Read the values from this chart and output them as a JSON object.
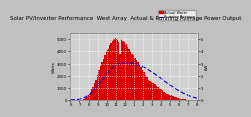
{
  "title": "Solar PV/Inverter Performance  West Array  Actual & Running Average Power Output",
  "bar_color": "#dd0000",
  "avg_color": "#0000cc",
  "bg_color": "#c0c0c0",
  "plot_bg": "#d0d0d0",
  "grid_color": "#ffffff",
  "ylabel_left": "Watts",
  "ylabel_right": "kW",
  "legend_entries": [
    "Actual Watts",
    "Running Average"
  ],
  "legend_colors": [
    "#dd0000",
    "#0000cc"
  ],
  "x_labels": [
    "6",
    "7",
    "8",
    "9",
    "10",
    "11",
    "12",
    "1",
    "2",
    "3",
    "4",
    "5",
    "6",
    "7",
    "8"
  ],
  "ylim": [
    0,
    5500
  ],
  "yticks_left": [
    0,
    1000,
    2000,
    3000,
    4000,
    5000
  ],
  "ytick_labels_left": [
    "0",
    "1000",
    "2000",
    "3000",
    "4000",
    "5000"
  ],
  "yticks_right": [
    0,
    1000,
    2000,
    3000,
    4000,
    5000
  ],
  "ytick_labels_right": [
    "0",
    "1",
    "2",
    "3",
    "4",
    "5"
  ],
  "n_bars": 85,
  "bar_heights": [
    5,
    5,
    5,
    5,
    8,
    12,
    18,
    30,
    50,
    80,
    150,
    250,
    400,
    600,
    900,
    1100,
    1400,
    1700,
    2100,
    2500,
    2800,
    3100,
    3400,
    3700,
    4000,
    4200,
    4500,
    4700,
    4900,
    5000,
    5100,
    5050,
    4800,
    3800,
    5000,
    4900,
    4800,
    4600,
    4400,
    4200,
    4000,
    3800,
    3700,
    3500,
    3300,
    3100,
    2900,
    2700,
    2500,
    2300,
    2100,
    1900,
    1700,
    1600,
    1500,
    1400,
    1300,
    1200,
    1100,
    1000,
    900,
    800,
    700,
    600,
    550,
    500,
    450,
    400,
    350,
    300,
    250,
    210,
    170,
    140,
    110,
    85,
    65,
    50,
    35,
    25,
    15,
    10,
    8,
    5,
    3
  ],
  "avg_line": [
    30,
    35,
    40,
    45,
    55,
    70,
    90,
    120,
    160,
    210,
    270,
    340,
    430,
    540,
    660,
    790,
    930,
    1070,
    1220,
    1380,
    1540,
    1700,
    1860,
    2010,
    2160,
    2300,
    2440,
    2560,
    2680,
    2790,
    2880,
    2950,
    3000,
    2980,
    3010,
    3030,
    3050,
    3060,
    3060,
    3060,
    3050,
    3040,
    3020,
    2990,
    2960,
    2920,
    2870,
    2820,
    2760,
    2700,
    2630,
    2560,
    2480,
    2400,
    2320,
    2240,
    2160,
    2080,
    1990,
    1900,
    1810,
    1720,
    1620,
    1520,
    1430,
    1340,
    1260,
    1180,
    1100,
    1020,
    940,
    860,
    780,
    710,
    640,
    580,
    520,
    460,
    410,
    360,
    310,
    270,
    230,
    200,
    170
  ],
  "title_fontsize": 4.0,
  "tick_fontsize": 2.8,
  "legend_fontsize": 2.6
}
